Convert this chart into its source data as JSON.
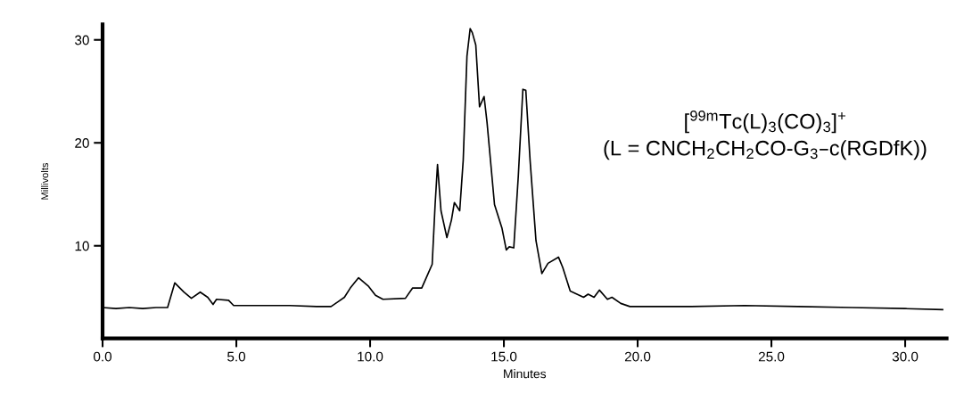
{
  "chart_data": {
    "type": "line",
    "xlabel": "Minutes",
    "ylabel": "Millivolts",
    "annotations": [
      "[$^{99m}$Tc(L)$_{3}$(CO)$_{3}$]$^{+}$",
      "(L = CNCH$_{2}$CH$_{2}$CO-G$_{3}$–c(RGDfK))"
    ],
    "xlim": [
      0,
      31.55
    ],
    "ylim": [
      1,
      31.5
    ],
    "xticks": [
      {
        "value": 0,
        "label": "0.0"
      },
      {
        "value": 5,
        "label": "5.0"
      },
      {
        "value": 10,
        "label": "10.0"
      },
      {
        "value": 15,
        "label": "15.0"
      },
      {
        "value": 20,
        "label": "20.0"
      },
      {
        "value": 25,
        "label": "25.0"
      },
      {
        "value": 30,
        "label": "30.0"
      }
    ],
    "yticks": [
      10,
      20,
      30
    ],
    "grid": false,
    "marker": "none",
    "line_style": "solid",
    "series": [
      {
        "color": "#000000",
        "x": [
          0,
          0.5,
          1.0,
          1.5,
          2.0,
          2.43,
          2.7,
          3.04,
          3.32,
          3.65,
          3.93,
          4.13,
          4.26,
          4.71,
          4.9,
          6.0,
          7.0,
          8.0,
          8.54,
          8.82,
          9.04,
          9.26,
          9.57,
          9.93,
          10.2,
          10.48,
          11.32,
          11.59,
          11.93,
          12.15,
          12.32,
          12.43,
          12.52,
          12.65,
          12.87,
          13.04,
          13.15,
          13.35,
          13.48,
          13.62,
          13.74,
          13.82,
          13.95,
          14.09,
          14.26,
          14.37,
          14.65,
          14.93,
          15.09,
          15.2,
          15.37,
          15.54,
          15.71,
          15.82,
          15.98,
          16.2,
          16.42,
          16.65,
          17.04,
          17.2,
          17.48,
          17.82,
          17.98,
          18.15,
          18.37,
          18.57,
          18.87,
          19.04,
          19.37,
          19.71,
          20.43,
          22.0,
          24.0,
          26.0,
          28.0,
          30.0,
          31.4
        ],
        "values": [
          4.0,
          3.9,
          4.0,
          3.9,
          4.0,
          4.0,
          6.4,
          5.5,
          4.9,
          5.5,
          5.0,
          4.3,
          4.8,
          4.7,
          4.2,
          4.2,
          4.2,
          4.1,
          4.1,
          4.6,
          5.0,
          5.9,
          6.9,
          6.1,
          5.2,
          4.8,
          4.9,
          5.9,
          5.9,
          7.2,
          8.2,
          14.0,
          17.9,
          13.4,
          10.8,
          12.5,
          14.2,
          13.4,
          18.3,
          28.4,
          31.1,
          30.7,
          29.5,
          23.5,
          24.5,
          22.0,
          14.0,
          11.7,
          9.6,
          9.9,
          9.8,
          16.8,
          25.2,
          25.1,
          18.3,
          10.5,
          7.3,
          8.3,
          8.9,
          7.9,
          5.6,
          5.2,
          5.0,
          5.3,
          5.0,
          5.7,
          4.8,
          5.0,
          4.4,
          4.1,
          4.1,
          4.1,
          4.2,
          4.1,
          4.0,
          3.9,
          3.8
        ]
      }
    ]
  }
}
